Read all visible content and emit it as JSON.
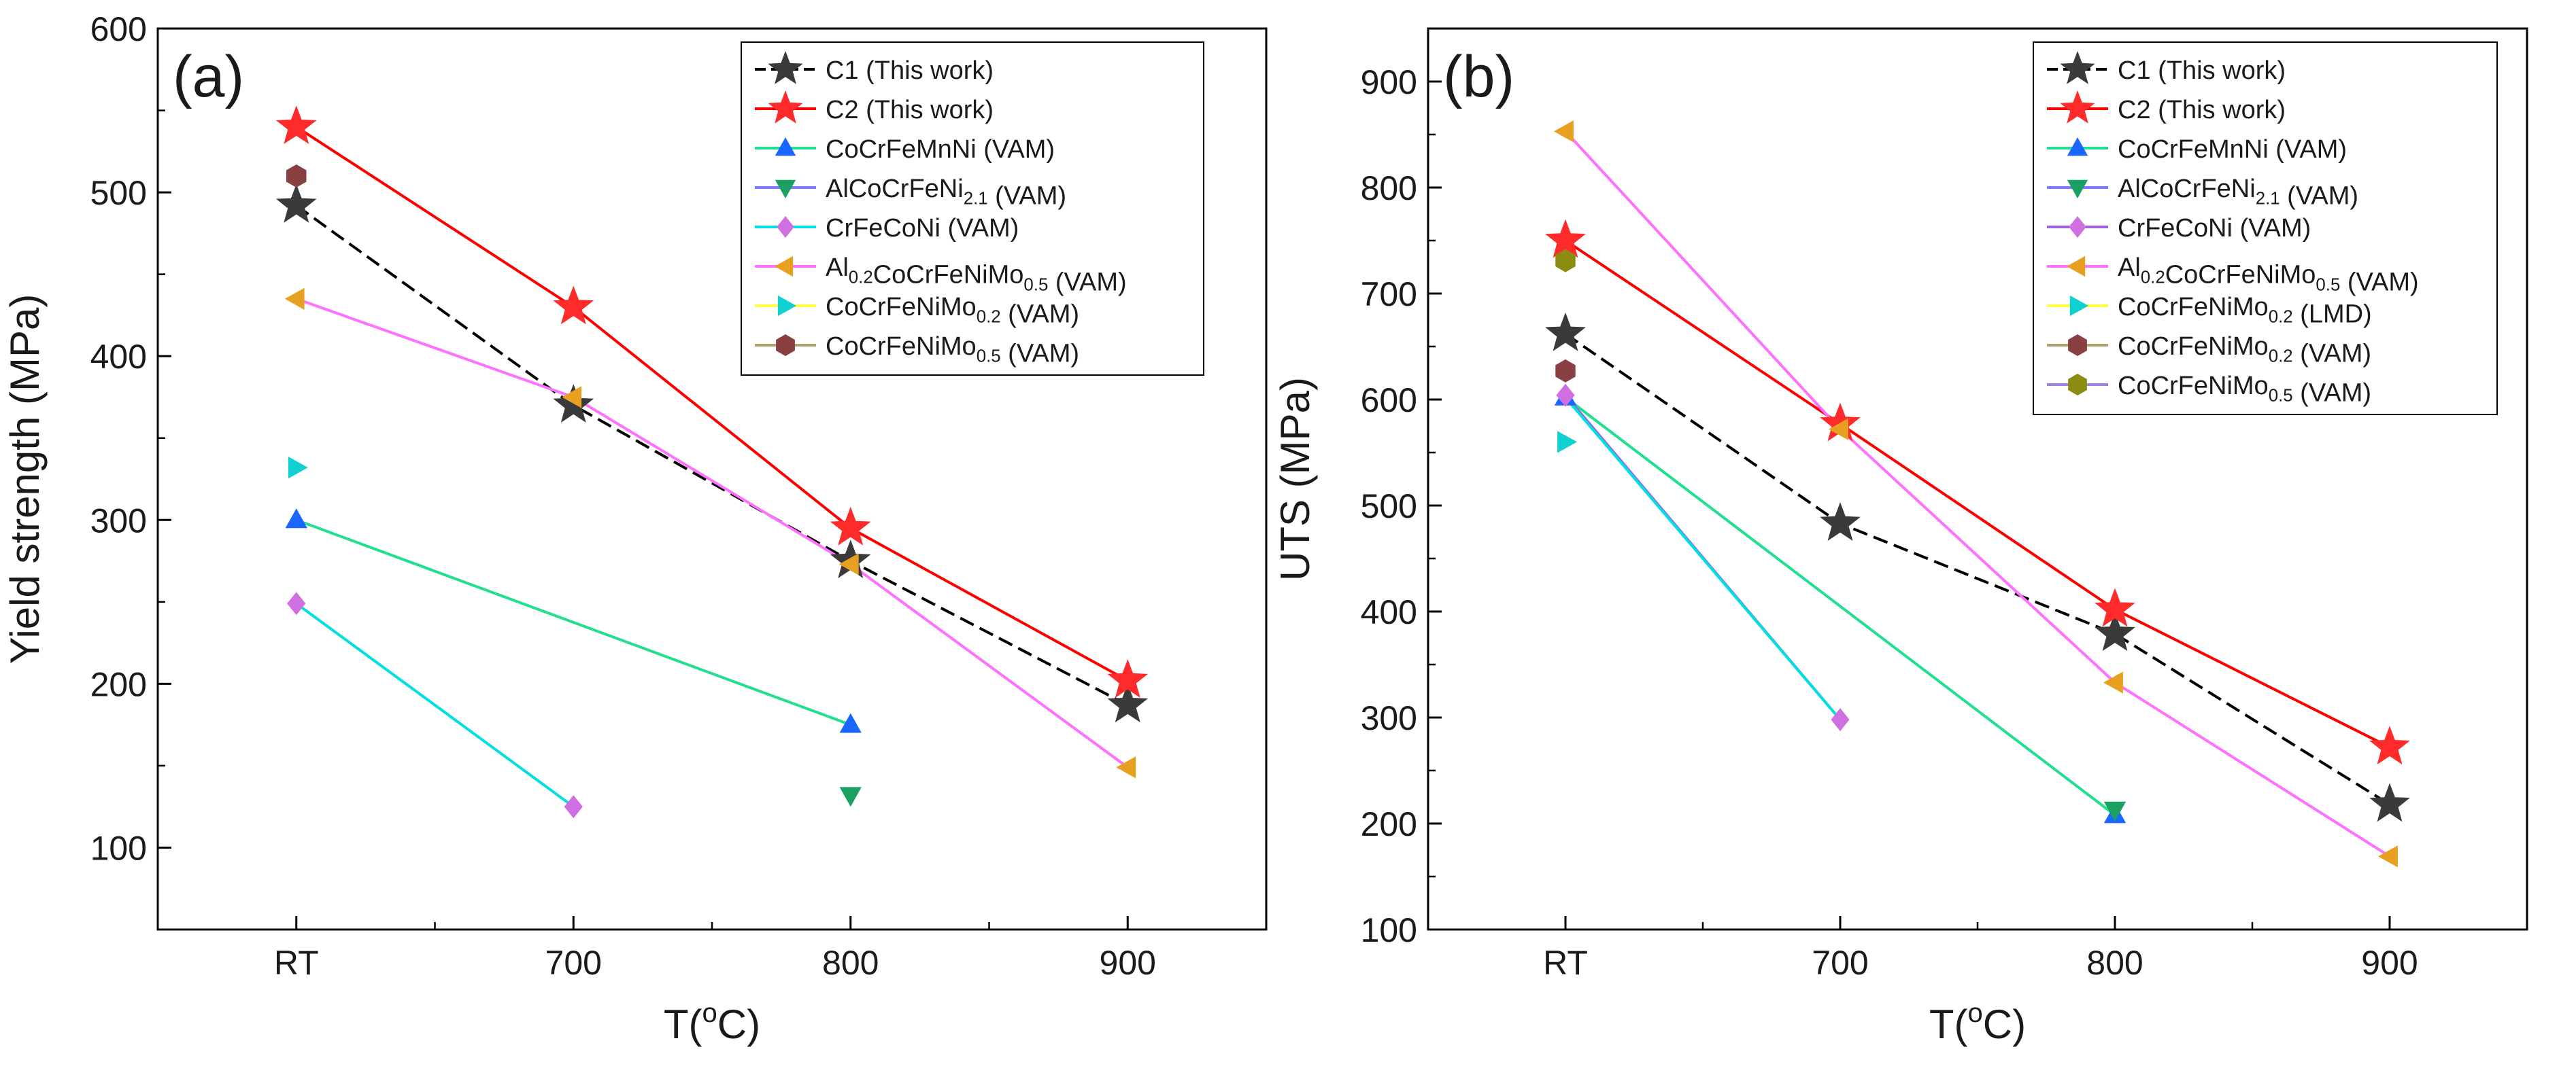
{
  "chart_data": [
    {
      "panel": "(a)",
      "type": "line",
      "xlabel": "T(oC)",
      "xlabel_parts": {
        "base": "T(",
        "sup": "o",
        "unit": "C)"
      },
      "ylabel": "Yield strength (MPa)",
      "categories": [
        "RT",
        "700",
        "800",
        "900"
      ],
      "ylim": [
        50,
        600
      ],
      "yticks": [
        100,
        200,
        300,
        400,
        500,
        600
      ],
      "legend_position": "top-right",
      "series": [
        {
          "name": "C1 (This work)",
          "base": "C1 (This work)",
          "marker": "star",
          "color": "#3a3a3a",
          "line_color": "#000000",
          "dashed": true,
          "connected": true,
          "values": [
            492,
            370,
            275,
            187
          ]
        },
        {
          "name": "C2 (This work)",
          "base": "C2 (This work)",
          "marker": "star",
          "color": "#ff2a2a",
          "line_color": "#ff0000",
          "dashed": false,
          "connected": true,
          "values": [
            540,
            430,
            295,
            202
          ]
        },
        {
          "name": "CoCrFeMnNi (VAM)",
          "base": "CoCrFeMnNi (VAM)",
          "marker": "triangle-up",
          "color": "#1a66ff",
          "line_color": "#20e090",
          "dashed": false,
          "connected": true,
          "values": [
            300,
            null,
            175,
            null
          ]
        },
        {
          "name": "AlCoCrFeNi2.1 (VAM)",
          "base": "AlCoCrFeNi",
          "sub": "2.1",
          "rest": " (VAM)",
          "marker": "triangle-down",
          "color": "#1aa060",
          "line_color": "#7b7bff",
          "dashed": false,
          "connected": true,
          "values": [
            null,
            null,
            132,
            null
          ]
        },
        {
          "name": "CrFeCoNi (VAM)",
          "base": "CrFeCoNi (VAM)",
          "marker": "diamond",
          "color": "#d070e0",
          "line_color": "#00e0e0",
          "dashed": false,
          "connected": true,
          "values": [
            249,
            125,
            null,
            null
          ]
        },
        {
          "name": "Al0.2CoCrFeNiMo0.5 (VAM)",
          "base": "Al",
          "sub": "0.2",
          "mid": "CoCrFeNiMo",
          "sub2": "0.5",
          "rest": " (VAM)",
          "marker": "triangle-left",
          "color": "#e8a020",
          "line_color": "#ff70ff",
          "dashed": false,
          "connected": true,
          "values": [
            435,
            375,
            273,
            149
          ]
        },
        {
          "name": "CoCrFeNiMo0.2 (VAM)",
          "base": "CoCrFeNiMo",
          "sub": "0.2",
          "rest": " (VAM)",
          "marker": "triangle-right",
          "color": "#10d0d0",
          "line_color": "#ffff40",
          "dashed": false,
          "connected": false,
          "values": [
            332,
            null,
            null,
            null
          ]
        },
        {
          "name": "CoCrFeNiMo0.5 (VAM)",
          "base": "CoCrFeNiMo",
          "sub": "0.5",
          "rest": " (VAM)",
          "marker": "hexagon",
          "color": "#8a4040",
          "line_color": "#b0a070",
          "dashed": false,
          "connected": false,
          "values": [
            510,
            null,
            null,
            null
          ]
        }
      ]
    },
    {
      "panel": "(b)",
      "type": "line",
      "xlabel": "T(oC)",
      "xlabel_parts": {
        "base": "T(",
        "sup": "o",
        "unit": "C)"
      },
      "ylabel": "UTS (MPa)",
      "categories": [
        "RT",
        "700",
        "800",
        "900"
      ],
      "ylim": [
        100,
        950
      ],
      "yticks": [
        100,
        200,
        300,
        400,
        500,
        600,
        700,
        800,
        900
      ],
      "legend_position": "top-right",
      "series": [
        {
          "name": "C1 (This work)",
          "base": "C1 (This work)",
          "marker": "star",
          "color": "#3a3a3a",
          "line_color": "#000000",
          "dashed": true,
          "connected": true,
          "values": [
            662,
            483,
            379,
            218
          ]
        },
        {
          "name": "C2 (This work)",
          "base": "C2 (This work)",
          "marker": "star",
          "color": "#ff2a2a",
          "line_color": "#ff0000",
          "dashed": false,
          "connected": true,
          "values": [
            750,
            577,
            402,
            272
          ]
        },
        {
          "name": "CoCrFeMnNi (VAM)",
          "base": "CoCrFeMnNi (VAM)",
          "marker": "triangle-up",
          "color": "#1a66ff",
          "line_color": "#20e090",
          "dashed": false,
          "connected": true,
          "values": [
            602,
            null,
            208,
            null
          ]
        },
        {
          "name": "AlCoCrFeNi2.1 (VAM)",
          "base": "AlCoCrFeNi",
          "sub": "2.1",
          "rest": " (VAM)",
          "marker": "triangle-down",
          "color": "#1aa060",
          "line_color": "#7b7bff",
          "dashed": false,
          "connected": true,
          "values": [
            null,
            null,
            213,
            null
          ]
        },
        {
          "name": "CrFeCoNi (VAM)",
          "base": "CrFeCoNi (VAM)",
          "marker": "diamond",
          "color": "#d070e0",
          "line_color": "#a060e0",
          "dashed": false,
          "connected": true,
          "values": [
            604,
            298,
            null,
            null
          ]
        },
        {
          "name": "Al0.2CoCrFeNiMo0.5 (VAM)",
          "base": "Al",
          "sub": "0.2",
          "mid": "CoCrFeNiMo",
          "sub2": "0.5",
          "rest": " (VAM)",
          "marker": "triangle-left",
          "color": "#e8a020",
          "line_color": "#ff70ff",
          "dashed": false,
          "connected": true,
          "values": [
            853,
            572,
            333,
            169
          ]
        },
        {
          "name": "CoCrFeNiMo0.2 (LMD)",
          "base": "CoCrFeNiMo",
          "sub": "0.2",
          "rest": " (LMD)",
          "marker": "triangle-right",
          "color": "#10d0d0",
          "line_color": "#ffff40",
          "dashed": false,
          "connected": true,
          "values": [
            560,
            null,
            null,
            null
          ]
        },
        {
          "name": "CoCrFeNiMo0.2 (VAM)",
          "base": "CoCrFeNiMo",
          "sub": "0.2",
          "rest": " (VAM)",
          "marker": "hexagon",
          "color": "#8a4040",
          "line_color": "#b0a070",
          "dashed": false,
          "connected": false,
          "values": [
            627,
            null,
            null,
            null
          ]
        },
        {
          "name": "CoCrFeNiMo0.5 (VAM)",
          "base": "CoCrFeNiMo",
          "sub": "0.5",
          "rest": " (VAM)",
          "marker": "hexagon",
          "color": "#8c8c10",
          "line_color": "#a080e0",
          "dashed": false,
          "connected": false,
          "values": [
            731,
            null,
            null,
            null
          ]
        }
      ]
    }
  ],
  "extra_lines_b": [
    {
      "from_series": "CoCrFeNiMo0.2 (LMD)",
      "note": "cyan connector",
      "points": [
        [
          0,
          602
        ],
        [
          1,
          298
        ]
      ],
      "color": "#00e0e0"
    }
  ]
}
